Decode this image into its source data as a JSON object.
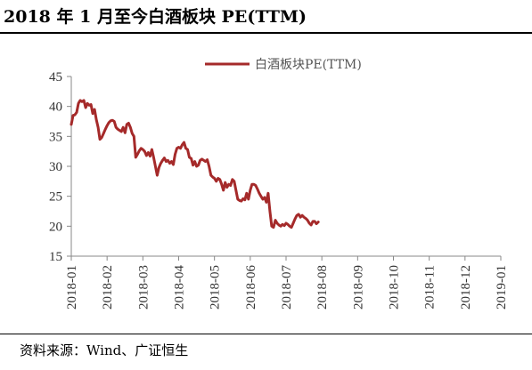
{
  "title": "2018 年 1 月至今白酒板块 PE(TTM)",
  "source": "资料来源：Wind、广证恒生",
  "chart_data": {
    "type": "line",
    "title": "2018 年 1 月至今白酒板块 PE(TTM)",
    "xlabel": "",
    "ylabel": "",
    "ylim": [
      15,
      45
    ],
    "yticks": [
      15,
      20,
      25,
      30,
      35,
      40,
      45
    ],
    "xticks": [
      "2018-01",
      "2018-02",
      "2018-03",
      "2018-04",
      "2018-05",
      "2018-06",
      "2018-07",
      "2018-08",
      "2018-09",
      "2018-10",
      "2018-11",
      "2018-12",
      "2019-01"
    ],
    "legend": "top-center",
    "grid": false,
    "series": [
      {
        "name": "白酒板块PE(TTM)",
        "color": "#a52a2a",
        "points": [
          [
            0.0,
            37.0
          ],
          [
            0.05,
            38.5
          ],
          [
            0.1,
            38.6
          ],
          [
            0.15,
            39.0
          ],
          [
            0.2,
            40.5
          ],
          [
            0.25,
            41.0
          ],
          [
            0.3,
            40.8
          ],
          [
            0.35,
            41.0
          ],
          [
            0.4,
            39.8
          ],
          [
            0.45,
            40.5
          ],
          [
            0.5,
            40.2
          ],
          [
            0.55,
            40.3
          ],
          [
            0.6,
            38.8
          ],
          [
            0.65,
            39.5
          ],
          [
            0.7,
            37.8
          ],
          [
            0.75,
            36.5
          ],
          [
            0.8,
            34.5
          ],
          [
            0.85,
            34.8
          ],
          [
            0.9,
            35.5
          ],
          [
            0.95,
            36.2
          ],
          [
            1.0,
            36.8
          ],
          [
            1.05,
            37.3
          ],
          [
            1.1,
            37.6
          ],
          [
            1.15,
            37.7
          ],
          [
            1.2,
            37.5
          ],
          [
            1.25,
            36.5
          ],
          [
            1.3,
            36.2
          ],
          [
            1.35,
            36.0
          ],
          [
            1.4,
            35.8
          ],
          [
            1.45,
            36.5
          ],
          [
            1.5,
            35.6
          ],
          [
            1.55,
            37.0
          ],
          [
            1.6,
            37.2
          ],
          [
            1.65,
            36.5
          ],
          [
            1.7,
            35.5
          ],
          [
            1.75,
            35.0
          ],
          [
            1.8,
            31.5
          ],
          [
            1.85,
            32.0
          ],
          [
            1.9,
            32.6
          ],
          [
            1.95,
            33.0
          ],
          [
            2.0,
            32.8
          ],
          [
            2.05,
            32.5
          ],
          [
            2.1,
            31.8
          ],
          [
            2.15,
            32.3
          ],
          [
            2.2,
            31.7
          ],
          [
            2.25,
            32.8
          ],
          [
            2.3,
            31.5
          ],
          [
            2.35,
            30.0
          ],
          [
            2.4,
            28.5
          ],
          [
            2.45,
            29.8
          ],
          [
            2.5,
            30.5
          ],
          [
            2.55,
            31.0
          ],
          [
            2.6,
            31.4
          ],
          [
            2.65,
            30.8
          ],
          [
            2.7,
            31.0
          ],
          [
            2.75,
            30.5
          ],
          [
            2.8,
            30.8
          ],
          [
            2.85,
            30.3
          ],
          [
            2.9,
            32.0
          ],
          [
            2.95,
            33.0
          ],
          [
            3.0,
            33.2
          ],
          [
            3.05,
            33.0
          ],
          [
            3.1,
            33.6
          ],
          [
            3.15,
            34.0
          ],
          [
            3.2,
            33.0
          ],
          [
            3.25,
            32.8
          ],
          [
            3.3,
            31.5
          ],
          [
            3.35,
            31.3
          ],
          [
            3.4,
            30.2
          ],
          [
            3.45,
            30.8
          ],
          [
            3.5,
            30.0
          ],
          [
            3.55,
            30.2
          ],
          [
            3.6,
            31.0
          ],
          [
            3.65,
            31.2
          ],
          [
            3.7,
            31.0
          ],
          [
            3.75,
            30.8
          ],
          [
            3.8,
            31.1
          ],
          [
            3.85,
            30.0
          ],
          [
            3.9,
            28.5
          ],
          [
            3.95,
            28.2
          ],
          [
            4.0,
            28.0
          ],
          [
            4.05,
            27.5
          ],
          [
            4.1,
            28.0
          ],
          [
            4.15,
            27.8
          ],
          [
            4.2,
            27.0
          ],
          [
            4.25,
            26.0
          ],
          [
            4.3,
            27.3
          ],
          [
            4.35,
            26.5
          ],
          [
            4.4,
            27.0
          ],
          [
            4.45,
            26.8
          ],
          [
            4.5,
            27.8
          ],
          [
            4.55,
            27.5
          ],
          [
            4.6,
            26.0
          ],
          [
            4.65,
            24.5
          ],
          [
            4.7,
            24.3
          ],
          [
            4.75,
            24.2
          ],
          [
            4.8,
            24.6
          ],
          [
            4.85,
            24.4
          ],
          [
            4.9,
            25.5
          ],
          [
            4.95,
            24.5
          ],
          [
            5.0,
            26.0
          ],
          [
            5.05,
            27.0
          ],
          [
            5.1,
            27.0
          ],
          [
            5.15,
            26.8
          ],
          [
            5.2,
            26.2
          ],
          [
            5.25,
            25.5
          ],
          [
            5.3,
            25.0
          ],
          [
            5.35,
            24.5
          ],
          [
            5.4,
            24.8
          ],
          [
            5.45,
            24.0
          ],
          [
            5.5,
            25.5
          ],
          [
            5.55,
            22.5
          ],
          [
            5.6,
            20.0
          ],
          [
            5.65,
            19.8
          ],
          [
            5.7,
            21.0
          ],
          [
            5.75,
            20.5
          ],
          [
            5.8,
            20.2
          ],
          [
            5.85,
            20.0
          ],
          [
            5.9,
            20.3
          ],
          [
            5.95,
            20.1
          ],
          [
            6.0,
            20.5
          ],
          [
            6.05,
            20.3
          ],
          [
            6.1,
            20.0
          ],
          [
            6.15,
            19.8
          ],
          [
            6.2,
            20.5
          ],
          [
            6.25,
            21.2
          ],
          [
            6.3,
            21.8
          ],
          [
            6.35,
            22.0
          ],
          [
            6.4,
            21.5
          ],
          [
            6.45,
            21.8
          ],
          [
            6.5,
            21.5
          ],
          [
            6.55,
            21.3
          ],
          [
            6.6,
            21.0
          ],
          [
            6.65,
            20.5
          ],
          [
            6.7,
            20.2
          ],
          [
            6.75,
            20.8
          ],
          [
            6.8,
            20.8
          ],
          [
            6.85,
            20.4
          ],
          [
            6.9,
            20.7
          ]
        ]
      }
    ]
  }
}
